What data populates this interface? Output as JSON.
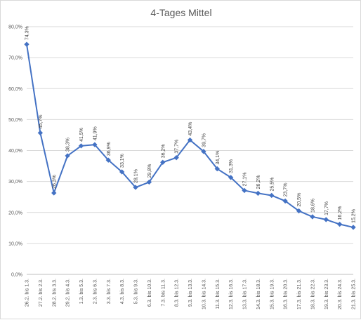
{
  "chart_data": {
    "type": "line",
    "title": "4-Tages Mittel",
    "xlabel": "",
    "ylabel": "",
    "ylim": [
      0,
      80
    ],
    "yticks": [
      0,
      10,
      20,
      30,
      40,
      50,
      60,
      70,
      80
    ],
    "ytick_labels": [
      "0,0%",
      "10,0%",
      "20,0%",
      "30,0%",
      "40,0%",
      "50,0%",
      "60,0%",
      "70,0%",
      "80,0%"
    ],
    "grid": true,
    "legend": "none",
    "series_color": "#4472c4",
    "categories": [
      "26.2. bis 1.3.",
      "27.2. bis 2.3.",
      "28.2. bis 3.3.",
      "29.2. bis 4.3.",
      "1.3. bis 5.3.",
      "2.3. bis 6.3.",
      "3.3. bis 7.3.",
      "4.3. bis 8.3.",
      "5.3. bis 9.3.",
      "6.3. bis 10.3.",
      "7.3. bis 11.3.",
      "8.3. bis 12.3.",
      "9.3. bis 13.3.",
      "10.3. bis 14.3.",
      "11.3. bis 15.3.",
      "12.3. bis 16.3.",
      "13.3. bis 17.3.",
      "14.3. bis 18.3.",
      "15.3. bis 19.3.",
      "16.3. bis 20.3.",
      "17.3. bis 21.3.",
      "18.3. bis 22.3.",
      "19.3. bis 23.3.",
      "20.3. bis 24.3.",
      "21.3. bis 25.3."
    ],
    "values": [
      74.3,
      45.7,
      26.3,
      38.3,
      41.5,
      41.9,
      36.9,
      33.1,
      28.1,
      29.8,
      36.2,
      37.7,
      43.4,
      39.7,
      34.1,
      31.3,
      27.1,
      26.2,
      25.5,
      23.7,
      20.5,
      18.6,
      17.7,
      16.2,
      15.2
    ],
    "data_labels": [
      "74,3%",
      "45,7%",
      "26,3%",
      "38,3%",
      "41,5%",
      "41,9%",
      "36,9%",
      "33,1%",
      "28,1%",
      "29,8%",
      "36,2%",
      "37,7%",
      "43,4%",
      "39,7%",
      "34,1%",
      "31,3%",
      "27,1%",
      "26,2%",
      "25,5%",
      "23,7%",
      "20,5%",
      "18,6%",
      "17,7%",
      "16,2%",
      "15,2%"
    ]
  }
}
